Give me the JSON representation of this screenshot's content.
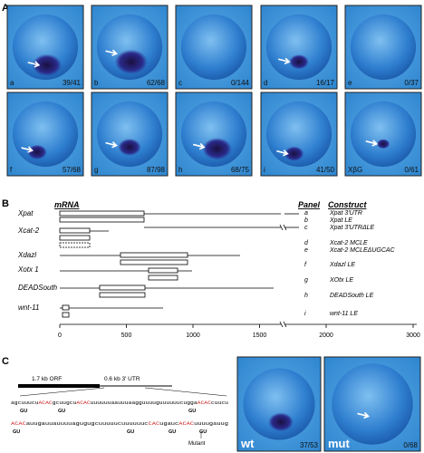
{
  "panel_a": {
    "label": "A",
    "images": [
      {
        "letter": "a",
        "count": "39/41"
      },
      {
        "letter": "b",
        "count": "62/68"
      },
      {
        "letter": "c",
        "count": "0/144"
      },
      {
        "letter": "d",
        "count": "16/17"
      },
      {
        "letter": "e",
        "count": "0/37"
      },
      {
        "letter": "f",
        "count": "57/68"
      },
      {
        "letter": "g",
        "count": "87/98"
      },
      {
        "letter": "h",
        "count": "68/75"
      },
      {
        "letter": "i",
        "count": "41/50"
      },
      {
        "letter": "XβG",
        "count": "0/61"
      }
    ]
  },
  "panel_b": {
    "label": "B",
    "header_mrna": "mRNA",
    "header_panel": "Panel",
    "header_construct": "Construct",
    "genes": [
      "Xpat",
      "Xcat-2",
      "Xdazl",
      "Xotx 1",
      "DEADSouth",
      "wnt-11"
    ],
    "constructs": [
      {
        "panel": "a",
        "name": "Xpat 3'UTR"
      },
      {
        "panel": "b",
        "name": "Xpat LE"
      },
      {
        "panel": "c",
        "name": "Xpat 3'UTRΔLE"
      },
      {
        "panel": "d",
        "name": "Xcat-2 MCLE"
      },
      {
        "panel": "e",
        "name": "Xcat-2 MCLEΔUGCAC"
      },
      {
        "panel": "f",
        "name": "Xdazl LE"
      },
      {
        "panel": "g",
        "name": "XOtx LE"
      },
      {
        "panel": "h",
        "name": "DEADSouth LE"
      },
      {
        "panel": "i",
        "name": "wnt-11 LE"
      }
    ],
    "axis_ticks": [
      0,
      500,
      1000,
      1500,
      2000,
      3000
    ]
  },
  "panel_c": {
    "label": "C",
    "orf_label": "1.7 kb ORF",
    "utr_label": "0.6 kb 3' UTR",
    "seq_line1": [
      {
        "text": "agcuuucu",
        "highlight": false
      },
      {
        "text": "ACAC",
        "highlight": true
      },
      {
        "text": "gcuugcu",
        "highlight": false
      },
      {
        "text": "ACAC",
        "highlight": true
      },
      {
        "text": "uuuuuuaauuuaagguuuuguuuuuucugga",
        "highlight": false
      },
      {
        "text": "ACAC",
        "highlight": true
      },
      {
        "text": "cuucu",
        "highlight": false
      }
    ],
    "seq_line2": [
      {
        "text": "ACAC",
        "highlight": true
      },
      {
        "text": "auugauuauuuuagugugcuuuuucuuuuuuc",
        "highlight": false
      },
      {
        "text": "CAC",
        "highlight": true
      },
      {
        "text": "ugauc",
        "highlight": false
      },
      {
        "text": "ACAC",
        "highlight": true
      },
      {
        "text": "uuuugauug",
        "highlight": false
      }
    ],
    "mut_line1": [
      "GU",
      "GU",
      "GU"
    ],
    "mut_line2": [
      "GU",
      "GU",
      "GU",
      "GU"
    ],
    "mutant_label": "Mutant",
    "images": [
      {
        "label": "wt",
        "count": "37/53"
      },
      {
        "label": "mut",
        "count": "0/68"
      }
    ]
  }
}
